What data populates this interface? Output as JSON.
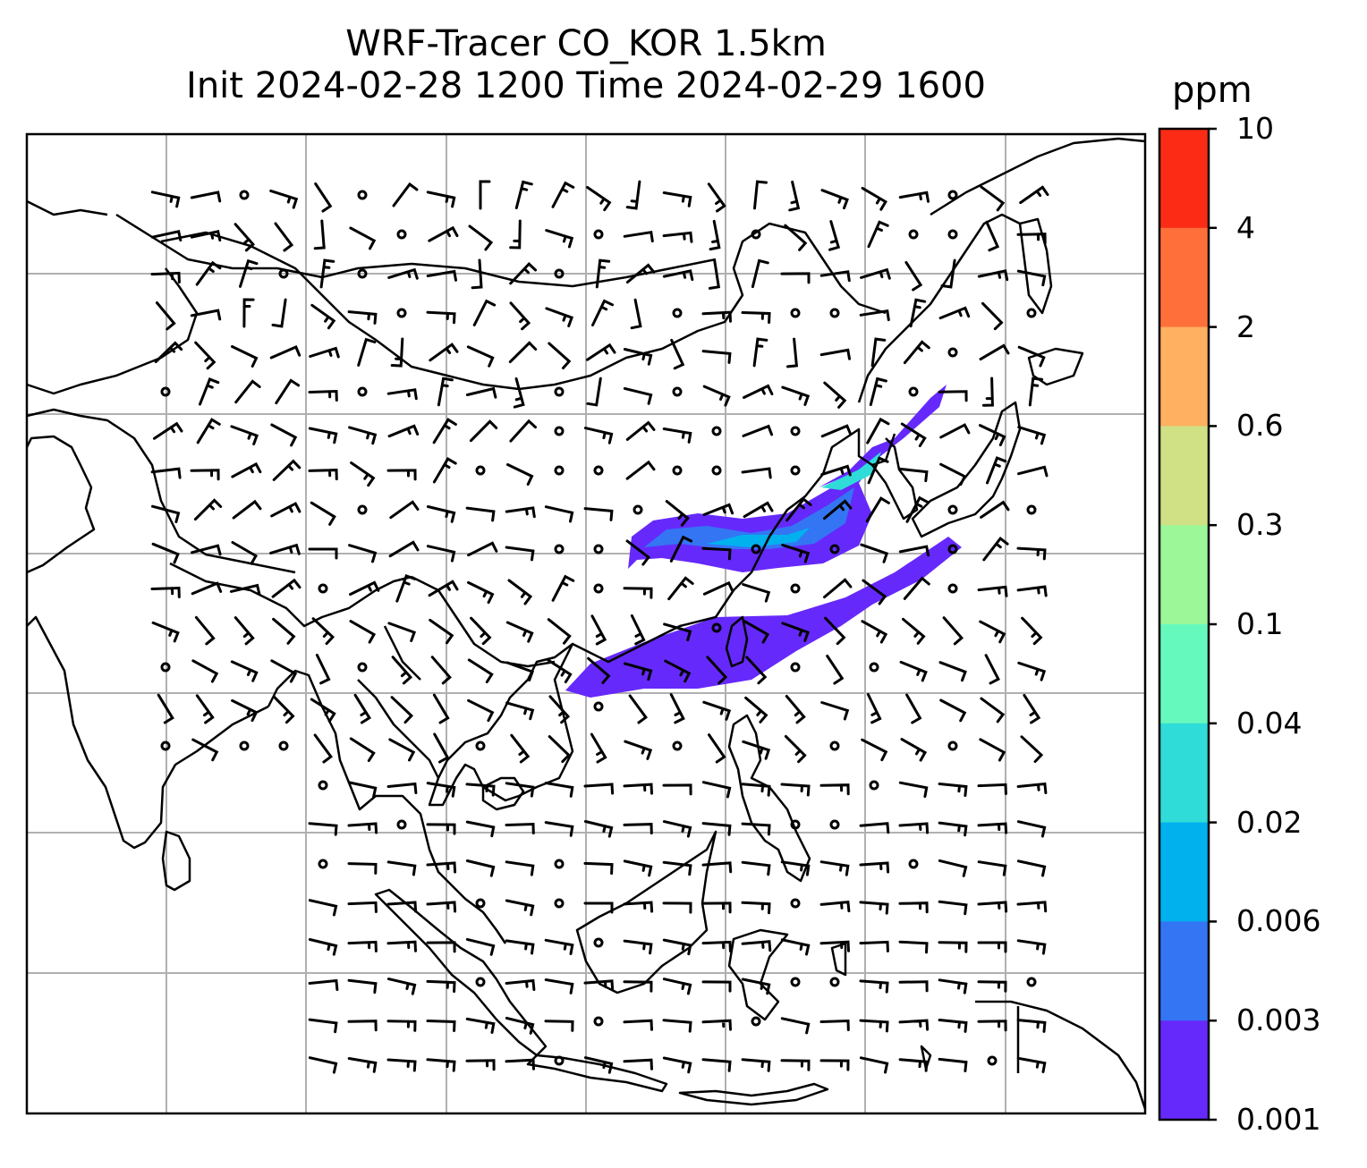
{
  "title": {
    "line1": "WRF-Tracer CO_KOR 1.5km",
    "line2": "Init 2024-02-28 1200 Time 2024-02-29 1600"
  },
  "colorbar": {
    "label": "ppm",
    "ticks": [
      "10",
      "4",
      "2",
      "0.6",
      "0.3",
      "0.1",
      "0.04",
      "0.02",
      "0.006",
      "0.003",
      "0.001"
    ],
    "colors": [
      "#fb2b16",
      "#ff6f3a",
      "#ffb060",
      "#d0e084",
      "#9bf797",
      "#66f9bd",
      "#2fdcd8",
      "#00b1ee",
      "#3475f4",
      "#6629fb"
    ]
  },
  "map": {
    "frame_color": "#000000",
    "grid_color": "#b0b0b0",
    "coastline_color": "#000000",
    "wind_barb_color": "#000000",
    "layers": [
      "coastlines",
      "gridlines",
      "wind-barbs",
      "co-tracer-plume"
    ]
  }
}
